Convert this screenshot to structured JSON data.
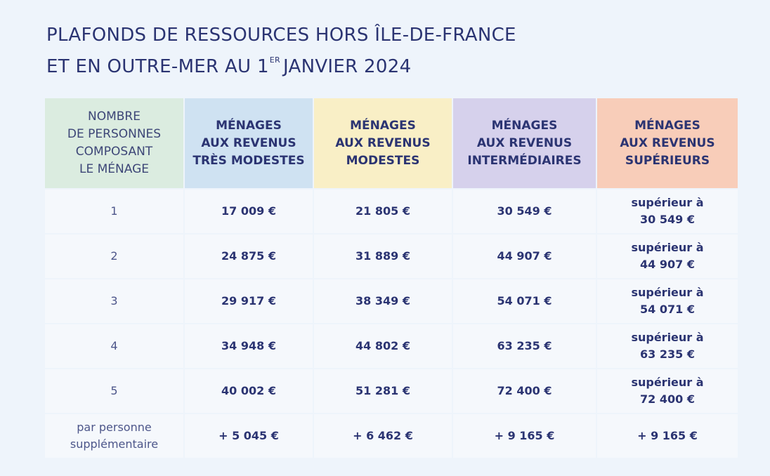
{
  "title": {
    "line1": "PLAFONDS DE RESSOURCES HORS ÎLE-DE-FRANCE",
    "line2_before": "ET EN OUTRE-MER AU 1",
    "line2_sup": "ER",
    "line2_after": "JANVIER 2024"
  },
  "table": {
    "headers": [
      [
        "NOMBRE",
        "DE PERSONNES",
        "COMPOSANT",
        "LE MÉNAGE"
      ],
      [
        "MÉNAGES",
        "AUX REVENUS",
        "TRÈS MODESTES"
      ],
      [
        "MÉNAGES",
        "AUX REVENUS",
        "MODESTES"
      ],
      [
        "MÉNAGES",
        "AUX REVENUS",
        "INTERMÉDIAIRES"
      ],
      [
        "MÉNAGES",
        "AUX REVENUS",
        "SUPÉRIEURS"
      ]
    ],
    "rows": [
      {
        "persons": [
          "1"
        ],
        "tres_modestes": "17 009 €",
        "modestes": "21 805 €",
        "intermediaires": "30 549 €",
        "superieurs": [
          "supérieur à",
          "30 549 €"
        ]
      },
      {
        "persons": [
          "2"
        ],
        "tres_modestes": "24 875 €",
        "modestes": "31 889 €",
        "intermediaires": "44 907 €",
        "superieurs": [
          "supérieur à",
          "44 907 €"
        ]
      },
      {
        "persons": [
          "3"
        ],
        "tres_modestes": "29 917 €",
        "modestes": "38 349 €",
        "intermediaires": "54 071 €",
        "superieurs": [
          "supérieur à",
          "54 071 €"
        ]
      },
      {
        "persons": [
          "4"
        ],
        "tres_modestes": "34 948 €",
        "modestes": "44 802 €",
        "intermediaires": "63 235 €",
        "superieurs": [
          "supérieur à",
          "63 235 €"
        ]
      },
      {
        "persons": [
          "5"
        ],
        "tres_modestes": "40 002 €",
        "modestes": "51 281 €",
        "intermediaires": "72 400 €",
        "superieurs": [
          "supérieur à",
          "72 400 €"
        ]
      },
      {
        "persons": [
          "par personne",
          "supplémentaire"
        ],
        "tres_modestes": "+ 5 045 €",
        "modestes": "+ 6 462 €",
        "intermediaires": "+ 9 165 €",
        "superieurs": [
          "+ 9 165 €"
        ]
      }
    ]
  },
  "colors": {
    "background": "#eef4fb",
    "text": "#2b3472",
    "header_persons": "#dbece0",
    "header_tres_modestes": "#cfe2f2",
    "header_modestes": "#f9efc6",
    "header_intermediaires": "#d6d1ec",
    "header_superieurs": "#f8cdb9",
    "body_cell": "#f5f8fc"
  }
}
